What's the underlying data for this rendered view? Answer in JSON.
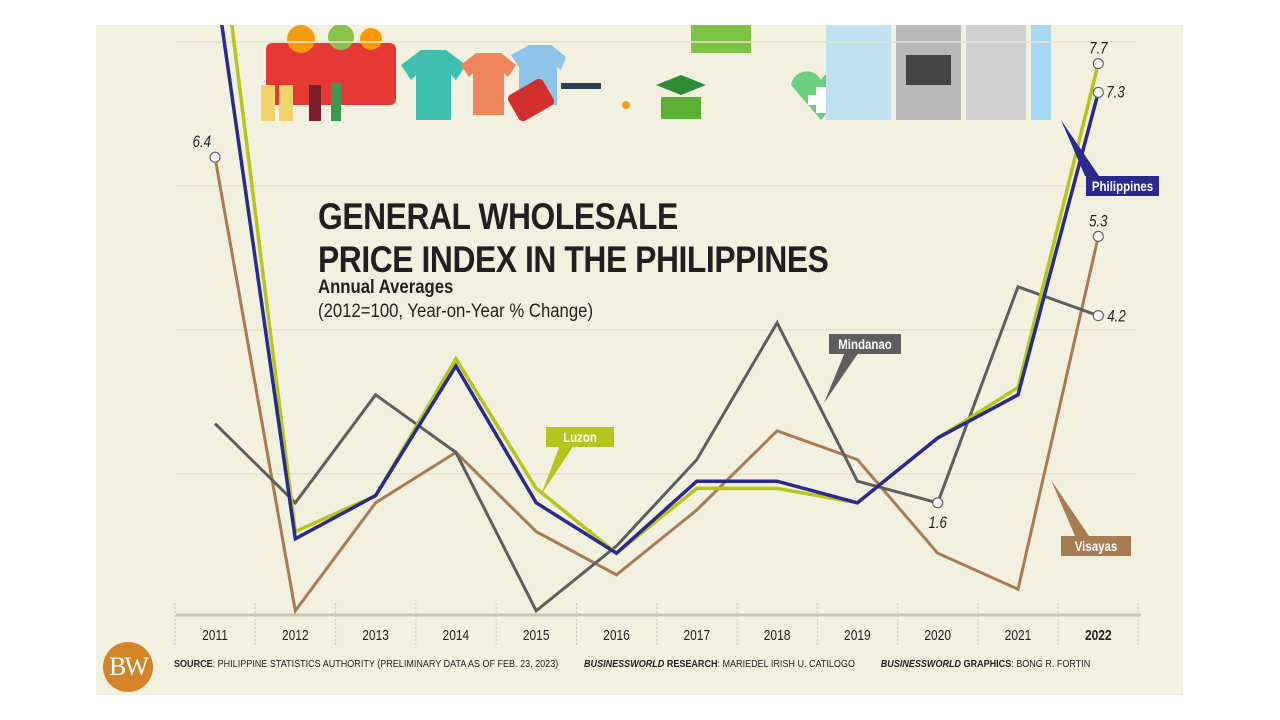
{
  "title_line1": "GENERAL WHOLESALE",
  "title_line2": "PRICE INDEX IN THE PHILIPPINES",
  "subtitle": "Annual Averages",
  "subtitle2": "(2012=100, Year-on-Year % Change)",
  "logo": "BW",
  "footer": {
    "source_label": "SOURCE",
    "source_text": ": PHILIPPINE STATISTICS AUTHORITY (PRELIMINARY DATA AS OF FEB. 23, 2023)",
    "research_brand": "BUSINESSWORLD",
    "research_label": " RESEARCH",
    "research_text": ": MARIEDEL IRISH U. CATILOGO",
    "graphics_brand": "BUSINESSWORLD",
    "graphics_label": " GRAPHICS",
    "graphics_text": ": BONG R. FORTIN"
  },
  "colors": {
    "background": "#f2f0df",
    "philippines": "#2b2a8c",
    "luzon": "#b5c51c",
    "visayas": "#a97b52",
    "mindanao": "#5e5e5e"
  },
  "chart_data": {
    "type": "line",
    "title": "GENERAL WHOLESALE PRICE INDEX IN THE PHILIPPINES",
    "xlabel": "",
    "ylabel": "Year-on-Year % Change",
    "categories": [
      "2011",
      "2012",
      "2013",
      "2014",
      "2015",
      "2016",
      "2017",
      "2018",
      "2019",
      "2020",
      "2021",
      "2022"
    ],
    "ylim": [
      0,
      8.5
    ],
    "grid": true,
    "series": [
      {
        "name": "Philippines",
        "color": "#2b2a8c",
        "values": [
          8.9,
          1.1,
          1.7,
          3.5,
          1.6,
          0.9,
          1.9,
          1.9,
          1.6,
          2.5,
          3.1,
          7.3
        ]
      },
      {
        "name": "Luzon",
        "color": "#b5c51c",
        "values": [
          10.1,
          1.2,
          1.7,
          3.6,
          1.8,
          0.9,
          1.8,
          1.8,
          1.6,
          2.5,
          3.2,
          7.7
        ]
      },
      {
        "name": "Visayas",
        "color": "#a97b52",
        "values": [
          6.4,
          0.1,
          1.6,
          2.3,
          1.2,
          0.6,
          1.5,
          2.6,
          2.2,
          0.9,
          0.4,
          5.3
        ]
      },
      {
        "name": "Mindanao",
        "color": "#5e5e5e",
        "values": [
          2.7,
          1.6,
          3.1,
          2.3,
          0.1,
          1.0,
          2.2,
          4.1,
          1.9,
          1.6,
          4.6,
          4.2
        ]
      }
    ],
    "annotations": [
      {
        "series": "Visayas",
        "category": "2011",
        "text": "6.4"
      },
      {
        "series": "Luzon",
        "category": "2022",
        "text": "7.7"
      },
      {
        "series": "Philippines",
        "category": "2022",
        "text": "7.3"
      },
      {
        "series": "Visayas",
        "category": "2022",
        "text": "5.3"
      },
      {
        "series": "Mindanao",
        "category": "2022",
        "text": "4.2"
      },
      {
        "series": "Mindanao",
        "category": "2020",
        "text": "1.6"
      }
    ],
    "legend_labels": [
      {
        "series": "Philippines",
        "text": "Philippines"
      },
      {
        "series": "Luzon",
        "text": "Luzon"
      },
      {
        "series": "Mindanao",
        "text": "Mindanao"
      },
      {
        "series": "Visayas",
        "text": "Visayas"
      }
    ]
  }
}
